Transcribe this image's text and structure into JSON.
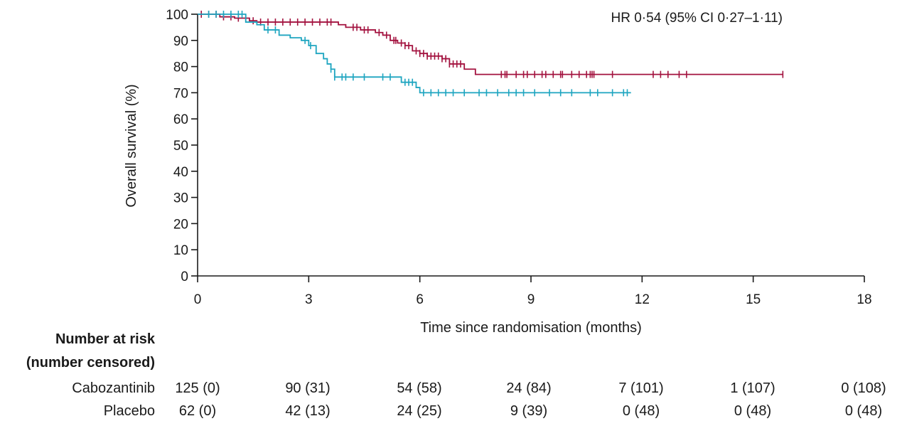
{
  "chart_data": {
    "type": "line",
    "annotation": "HR 0·54 (95% CI 0·27–1·11)",
    "xlabel": "Time since randomisation (months)",
    "ylabel": "Overall survival (%)",
    "xlim": [
      0,
      18
    ],
    "ylim": [
      0,
      100
    ],
    "x_ticks": [
      0,
      3,
      6,
      9,
      12,
      15,
      18
    ],
    "x_tick_labels": [
      "0",
      "3",
      "6",
      "9",
      "12",
      "15",
      "18"
    ],
    "y_ticks": [
      0,
      10,
      20,
      30,
      40,
      50,
      60,
      70,
      80,
      90,
      100
    ],
    "y_tick_labels": [
      "0",
      "10",
      "20",
      "30",
      "40",
      "50",
      "60",
      "70",
      "80",
      "90",
      "100"
    ],
    "grid": false,
    "legend": "none",
    "series": [
      {
        "color": "#a3123f",
        "steps": [
          [
            0,
            100
          ],
          [
            0.6,
            99
          ],
          [
            1.0,
            98.5
          ],
          [
            1.4,
            97.5
          ],
          [
            1.6,
            97
          ],
          [
            3.7,
            97
          ],
          [
            3.8,
            96
          ],
          [
            4.0,
            95
          ],
          [
            4.4,
            94
          ],
          [
            4.8,
            93
          ],
          [
            5.0,
            92
          ],
          [
            5.2,
            90
          ],
          [
            5.4,
            89
          ],
          [
            5.6,
            88
          ],
          [
            5.8,
            86
          ],
          [
            6.0,
            85
          ],
          [
            6.2,
            84
          ],
          [
            6.6,
            83
          ],
          [
            6.8,
            81
          ],
          [
            7.2,
            79
          ],
          [
            7.5,
            77
          ],
          [
            15.8,
            77
          ]
        ],
        "censor": [
          0.1,
          0.3,
          0.5,
          0.7,
          0.9,
          1.1,
          1.3,
          1.5,
          1.7,
          1.9,
          2.1,
          2.3,
          2.5,
          2.7,
          2.9,
          3.1,
          3.3,
          3.5,
          3.6,
          4.2,
          4.3,
          4.5,
          4.6,
          4.9,
          5.1,
          5.3,
          5.35,
          5.5,
          5.6,
          5.7,
          5.9,
          6.0,
          6.1,
          6.2,
          6.3,
          6.4,
          6.5,
          6.6,
          6.7,
          6.8,
          6.9,
          7.0,
          7.1,
          8.2,
          8.3,
          8.35,
          8.6,
          8.8,
          8.9,
          9.1,
          9.3,
          9.4,
          9.6,
          9.8,
          9.85,
          10.1,
          10.3,
          10.5,
          10.6,
          10.65,
          10.7,
          11.2,
          12.3,
          12.5,
          12.7,
          13.0,
          13.2,
          15.8
        ]
      },
      {
        "color": "#1ea5c0",
        "steps": [
          [
            0,
            100
          ],
          [
            1.3,
            97
          ],
          [
            1.6,
            96
          ],
          [
            1.8,
            94
          ],
          [
            2.2,
            92
          ],
          [
            2.5,
            91
          ],
          [
            2.8,
            90
          ],
          [
            3.0,
            88
          ],
          [
            3.2,
            85
          ],
          [
            3.4,
            83
          ],
          [
            3.5,
            81
          ],
          [
            3.6,
            79
          ],
          [
            3.7,
            76
          ],
          [
            5.4,
            76
          ],
          [
            5.5,
            74
          ],
          [
            5.9,
            72
          ],
          [
            6.0,
            70
          ],
          [
            11.7,
            70
          ]
        ],
        "censor": [
          0.3,
          0.5,
          0.7,
          0.9,
          1.1,
          1.2,
          1.9,
          2.1,
          2.9,
          3.05,
          3.6,
          3.7,
          3.9,
          4.0,
          4.2,
          4.5,
          5.0,
          5.2,
          5.6,
          5.7,
          5.8,
          6.1,
          6.3,
          6.5,
          6.7,
          6.9,
          7.2,
          7.6,
          7.8,
          8.1,
          8.4,
          8.6,
          8.8,
          9.1,
          9.5,
          9.8,
          10.1,
          10.6,
          10.8,
          11.2,
          11.5,
          11.6
        ]
      }
    ],
    "risk_table": {
      "header_line1": "Number at risk",
      "header_line2": "(number censored)",
      "rows": [
        {
          "label": "Cabozantinib",
          "values": [
            "125 (0)",
            "90 (31)",
            "54 (58)",
            "24 (84)",
            "7 (101)",
            "1 (107)",
            "0 (108)"
          ]
        },
        {
          "label": "Placebo",
          "values": [
            "62 (0)",
            "42 (13)",
            "24 (25)",
            "9 (39)",
            "0 (48)",
            "0 (48)",
            "0 (48)"
          ]
        }
      ]
    }
  }
}
